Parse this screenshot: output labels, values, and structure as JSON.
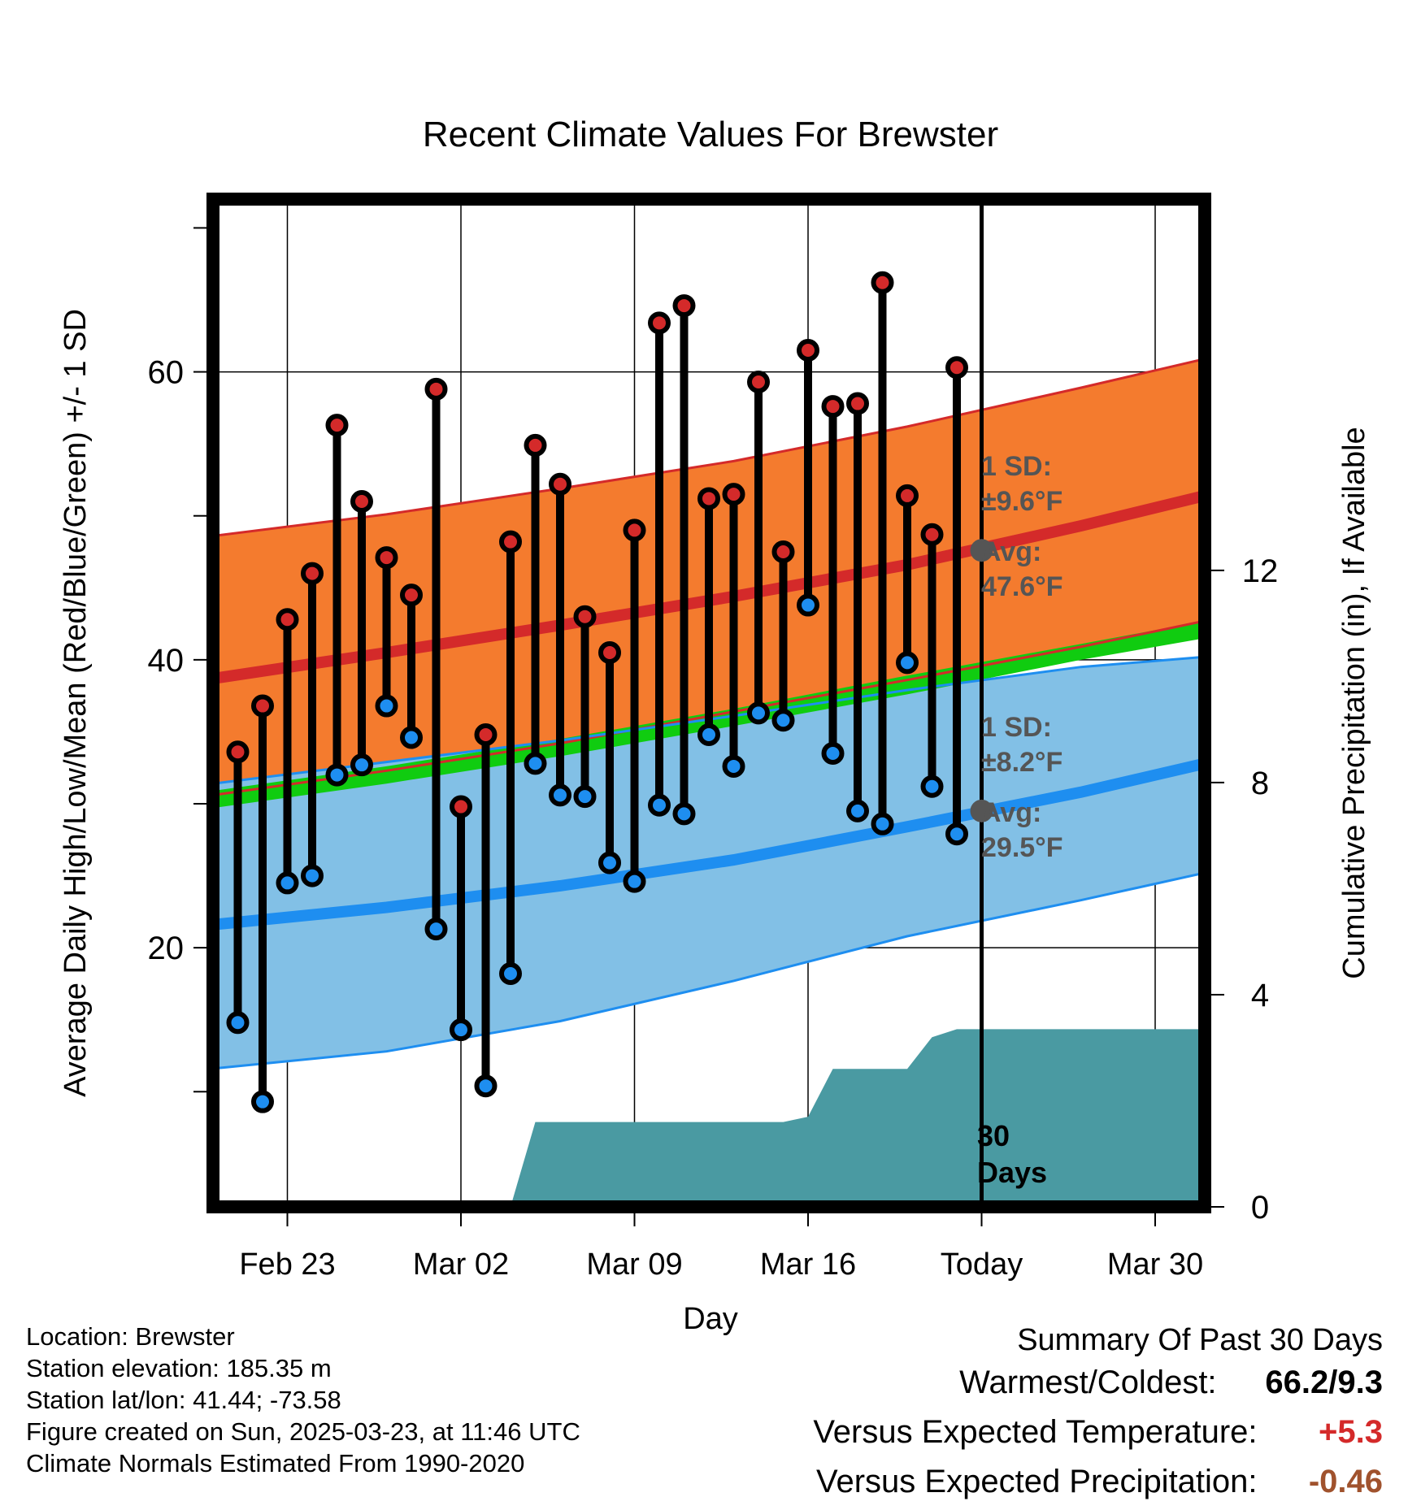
{
  "title": "Recent Climate Values For Brewster",
  "y_label_left": "Average Daily High/Low/Mean (Red/Blue/Green) +/- 1 SD",
  "y_label_right": "Cumulative Precipitation (in), If Available",
  "x_label": "Day",
  "annotations": {
    "high_sd_line1": "1 SD:",
    "high_sd_line2": "±9.6°F",
    "high_avg_line1": "Avg:",
    "high_avg_line2": "47.6°F",
    "low_sd_line1": "1 SD:",
    "low_sd_line2": "±8.2°F",
    "low_avg_line1": "Avg:",
    "low_avg_line2": "29.5°F",
    "window_line1": "30",
    "window_line2": "Days"
  },
  "footer": {
    "location": "Location: Brewster",
    "elevation": "Station elevation: 185.35 m",
    "latlon": "Station lat/lon: 41.44; -73.58",
    "created": "Figure created on Sun, 2025-03-23, at 11:46 UTC",
    "normals": "Climate Normals Estimated From 1990-2020"
  },
  "summary": {
    "title": "Summary Of Past 30 Days",
    "warmest_label": "Warmest/Coldest:",
    "warmest_value": "66.2/9.3",
    "temp_label": "Versus Expected Temperature:",
    "temp_value": "+5.3",
    "precip_label": "Versus Expected Precipitation:",
    "precip_value": "-0.46"
  },
  "colors": {
    "high_band": "#f47b2e",
    "low_band": "#82c0e6",
    "high_avg": "#d42a2a",
    "low_avg": "#1e8ef0",
    "mean_band": "#10cc10",
    "precip": "#4a9aa2",
    "high_dot": "#d42a2a",
    "low_dot": "#1e8ef0",
    "annotation": "#555555",
    "temp_anomaly": "#d42a2a",
    "precip_anomaly": "#a0522d"
  },
  "chart_data": {
    "type": "line",
    "x_start": "2025-02-20",
    "x_end": "2025-04-01",
    "x_ticks": [
      "Feb 23",
      "Mar 02",
      "Mar 09",
      "Mar 16",
      "Today",
      "Mar 30"
    ],
    "x_tick_dates": [
      "2025-02-23",
      "2025-03-02",
      "2025-03-09",
      "2025-03-16",
      "2025-03-23",
      "2025-03-30"
    ],
    "today": "2025-03-23",
    "ylim_left": [
      2,
      72
    ],
    "yticks_left": [
      20,
      40,
      60
    ],
    "ylim_right": [
      0,
      19
    ],
    "yticks_right": [
      0,
      4,
      8,
      12
    ],
    "grid": true,
    "dates": [
      "2025-02-21",
      "2025-02-22",
      "2025-02-23",
      "2025-02-24",
      "2025-02-25",
      "2025-02-26",
      "2025-02-27",
      "2025-02-28",
      "2025-03-01",
      "2025-03-02",
      "2025-03-03",
      "2025-03-04",
      "2025-03-05",
      "2025-03-06",
      "2025-03-07",
      "2025-03-08",
      "2025-03-09",
      "2025-03-10",
      "2025-03-11",
      "2025-03-12",
      "2025-03-13",
      "2025-03-14",
      "2025-03-15",
      "2025-03-16",
      "2025-03-17",
      "2025-03-18",
      "2025-03-19",
      "2025-03-20",
      "2025-03-21",
      "2025-03-22"
    ],
    "series": [
      {
        "name": "Daily High",
        "values": [
          33.6,
          36.8,
          42.8,
          46.0,
          56.3,
          51.0,
          47.1,
          44.5,
          58.8,
          29.8,
          34.8,
          48.2,
          54.9,
          52.2,
          43.0,
          40.5,
          49.0,
          63.4,
          64.6,
          51.2,
          51.5,
          59.3,
          47.5,
          61.5,
          57.6,
          57.8,
          66.2,
          51.4,
          48.7,
          60.3
        ]
      },
      {
        "name": "Daily Low",
        "values": [
          14.8,
          9.3,
          24.5,
          25.0,
          32.0,
          32.7,
          36.8,
          34.6,
          21.3,
          14.3,
          10.4,
          18.2,
          32.8,
          30.6,
          30.5,
          25.9,
          24.6,
          29.9,
          29.3,
          34.8,
          32.6,
          36.3,
          35.8,
          43.8,
          33.5,
          29.5,
          28.6,
          39.8,
          31.2,
          27.9
        ]
      }
    ],
    "normals": {
      "dates": [
        "2025-02-20",
        "2025-02-27",
        "2025-03-06",
        "2025-03-13",
        "2025-03-20",
        "2025-03-27",
        "2025-04-01"
      ],
      "high_avg": [
        38.7,
        40.5,
        42.4,
        44.4,
        46.6,
        49.3,
        51.4
      ],
      "high_upper": [
        48.6,
        50.1,
        51.9,
        53.8,
        56.2,
        58.9,
        60.9
      ],
      "high_lower": [
        30.6,
        32.3,
        34.2,
        36.4,
        38.6,
        40.9,
        42.7
      ],
      "low_avg": [
        21.6,
        22.8,
        24.3,
        26.1,
        28.4,
        30.8,
        32.8
      ],
      "low_upper": [
        31.4,
        32.9,
        34.4,
        36.1,
        37.9,
        39.5,
        40.2
      ],
      "low_lower": [
        11.6,
        12.8,
        14.9,
        17.7,
        20.8,
        23.3,
        25.2
      ],
      "mean_upper": [
        30.9,
        32.6,
        34.5,
        36.6,
        38.9,
        41.1,
        42.7
      ],
      "mean_lower": [
        29.7,
        31.4,
        33.3,
        35.4,
        37.6,
        40.0,
        41.5
      ]
    },
    "precipitation": {
      "dates": [
        "2025-03-04",
        "2025-03-05",
        "2025-03-15",
        "2025-03-16",
        "2025-03-17",
        "2025-03-20",
        "2025-03-21",
        "2025-03-22",
        "2025-04-01"
      ],
      "cumulative": [
        0.0,
        1.6,
        1.6,
        1.7,
        2.6,
        2.6,
        3.2,
        3.35,
        3.35
      ]
    },
    "markers": {
      "high_avg_today": 47.6,
      "low_avg_today": 29.5
    }
  }
}
